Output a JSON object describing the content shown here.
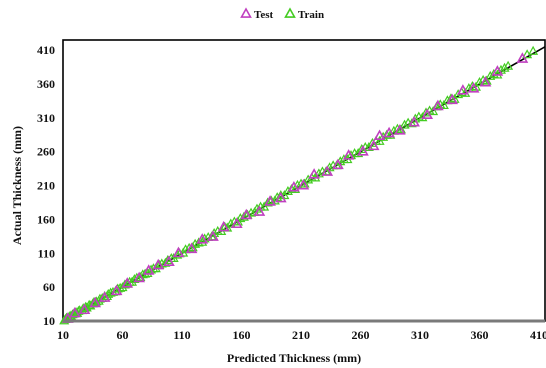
{
  "chart_data": {
    "type": "scatter",
    "xlabel": "Predicted  Thickness (mm)",
    "ylabel": "Actual  Thickness (mm)",
    "xlim": [
      10,
      415
    ],
    "ylim": [
      10,
      425
    ],
    "x_ticks": [
      10,
      60,
      110,
      160,
      210,
      260,
      310,
      360,
      410
    ],
    "y_ticks": [
      10,
      60,
      110,
      160,
      210,
      260,
      310,
      360,
      410
    ],
    "x_tick_labels": [
      "10",
      "60",
      "110",
      "160",
      "210",
      "260",
      "310",
      "360",
      "410"
    ],
    "y_tick_labels": [
      "10",
      "60",
      "110",
      "160",
      "210",
      "260",
      "310",
      "360",
      "410"
    ],
    "grid": false,
    "legend_position": "top-center",
    "reference_line": {
      "type": "y=x"
    },
    "series": [
      {
        "name": "Test",
        "color": "#c040c0",
        "marker": "triangle-open",
        "points": [
          [
            14,
            13
          ],
          [
            20,
            21
          ],
          [
            28,
            26
          ],
          [
            37,
            36
          ],
          [
            45,
            44
          ],
          [
            55,
            54
          ],
          [
            64,
            65
          ],
          [
            74,
            73
          ],
          [
            82,
            84
          ],
          [
            90,
            92
          ],
          [
            99,
            97
          ],
          [
            107,
            110
          ],
          [
            118,
            116
          ],
          [
            127,
            130
          ],
          [
            136,
            134
          ],
          [
            145,
            148
          ],
          [
            156,
            153
          ],
          [
            164,
            166
          ],
          [
            175,
            171
          ],
          [
            184,
            186
          ],
          [
            193,
            191
          ],
          [
            204,
            207
          ],
          [
            212,
            210
          ],
          [
            221,
            226
          ],
          [
            232,
            230
          ],
          [
            241,
            240
          ],
          [
            250,
            254
          ],
          [
            262,
            260
          ],
          [
            271,
            268
          ],
          [
            276,
            283
          ],
          [
            284,
            287
          ],
          [
            293,
            291
          ],
          [
            305,
            303
          ],
          [
            316,
            314
          ],
          [
            325,
            327
          ],
          [
            337,
            336
          ],
          [
            346,
            350
          ],
          [
            355,
            353
          ],
          [
            365,
            362
          ],
          [
            375,
            378
          ],
          [
            396,
            397
          ]
        ]
      },
      {
        "name": "Train",
        "color": "#44cc22",
        "marker": "triangle-open",
        "points": [
          [
            11,
            10
          ],
          [
            12,
            12
          ],
          [
            13,
            14
          ],
          [
            15,
            15
          ],
          [
            16,
            17
          ],
          [
            17,
            16
          ],
          [
            18,
            19
          ],
          [
            19,
            20
          ],
          [
            21,
            22
          ],
          [
            22,
            21
          ],
          [
            23,
            24
          ],
          [
            24,
            25
          ],
          [
            26,
            25
          ],
          [
            27,
            28
          ],
          [
            29,
            30
          ],
          [
            30,
            29
          ],
          [
            32,
            33
          ],
          [
            33,
            32
          ],
          [
            35,
            35
          ],
          [
            36,
            37
          ],
          [
            38,
            38
          ],
          [
            40,
            39
          ],
          [
            41,
            42
          ],
          [
            43,
            43
          ],
          [
            45,
            46
          ],
          [
            47,
            46
          ],
          [
            48,
            49
          ],
          [
            50,
            51
          ],
          [
            52,
            52
          ],
          [
            54,
            53
          ],
          [
            56,
            57
          ],
          [
            58,
            58
          ],
          [
            60,
            59
          ],
          [
            62,
            63
          ],
          [
            64,
            64
          ],
          [
            66,
            67
          ],
          [
            68,
            67
          ],
          [
            70,
            71
          ],
          [
            72,
            73
          ],
          [
            75,
            74
          ],
          [
            77,
            78
          ],
          [
            79,
            79
          ],
          [
            81,
            80
          ],
          [
            84,
            85
          ],
          [
            86,
            87
          ],
          [
            88,
            87
          ],
          [
            91,
            92
          ],
          [
            93,
            94
          ],
          [
            96,
            95
          ],
          [
            98,
            99
          ],
          [
            101,
            102
          ],
          [
            103,
            102
          ],
          [
            106,
            107
          ],
          [
            108,
            109
          ],
          [
            111,
            110
          ],
          [
            113,
            115
          ],
          [
            116,
            117
          ],
          [
            119,
            118
          ],
          [
            121,
            123
          ],
          [
            124,
            125
          ],
          [
            127,
            126
          ],
          [
            129,
            131
          ],
          [
            132,
            133
          ],
          [
            135,
            134
          ],
          [
            137,
            139
          ],
          [
            140,
            142
          ],
          [
            143,
            142
          ],
          [
            146,
            148
          ],
          [
            148,
            147
          ],
          [
            151,
            153
          ],
          [
            154,
            156
          ],
          [
            157,
            156
          ],
          [
            159,
            161
          ],
          [
            162,
            163
          ],
          [
            165,
            166
          ],
          [
            168,
            169
          ],
          [
            171,
            170
          ],
          [
            173,
            175
          ],
          [
            176,
            178
          ],
          [
            179,
            178
          ],
          [
            182,
            184
          ],
          [
            185,
            187
          ],
          [
            188,
            187
          ],
          [
            190,
            192
          ],
          [
            193,
            195
          ],
          [
            196,
            195
          ],
          [
            199,
            201
          ],
          [
            202,
            204
          ],
          [
            205,
            204
          ],
          [
            207,
            210
          ],
          [
            210,
            212
          ],
          [
            213,
            212
          ],
          [
            216,
            218
          ],
          [
            219,
            221
          ],
          [
            222,
            221
          ],
          [
            225,
            227
          ],
          [
            228,
            230
          ],
          [
            231,
            230
          ],
          [
            234,
            236
          ],
          [
            237,
            239
          ],
          [
            240,
            239
          ],
          [
            243,
            245
          ],
          [
            246,
            248
          ],
          [
            249,
            248
          ],
          [
            252,
            254
          ],
          [
            255,
            257
          ],
          [
            258,
            257
          ],
          [
            261,
            263
          ],
          [
            264,
            266
          ],
          [
            267,
            266
          ],
          [
            270,
            272
          ],
          [
            273,
            275
          ],
          [
            276,
            275
          ],
          [
            279,
            281
          ],
          [
            282,
            284
          ],
          [
            285,
            284
          ],
          [
            288,
            290
          ],
          [
            291,
            293
          ],
          [
            294,
            292
          ],
          [
            297,
            299
          ],
          [
            300,
            302
          ],
          [
            303,
            301
          ],
          [
            306,
            308
          ],
          [
            309,
            311
          ],
          [
            312,
            310
          ],
          [
            315,
            317
          ],
          [
            318,
            320
          ],
          [
            321,
            319
          ],
          [
            324,
            326
          ],
          [
            327,
            329
          ],
          [
            330,
            328
          ],
          [
            333,
            335
          ],
          [
            336,
            338
          ],
          [
            339,
            337
          ],
          [
            342,
            344
          ],
          [
            345,
            347
          ],
          [
            348,
            346
          ],
          [
            351,
            353
          ],
          [
            354,
            356
          ],
          [
            357,
            355
          ],
          [
            360,
            362
          ],
          [
            363,
            365
          ],
          [
            366,
            364
          ],
          [
            369,
            371
          ],
          [
            372,
            374
          ],
          [
            375,
            373
          ],
          [
            378,
            380
          ],
          [
            381,
            383
          ],
          [
            384,
            386
          ],
          [
            400,
            403
          ],
          [
            405,
            408
          ]
        ]
      }
    ]
  }
}
